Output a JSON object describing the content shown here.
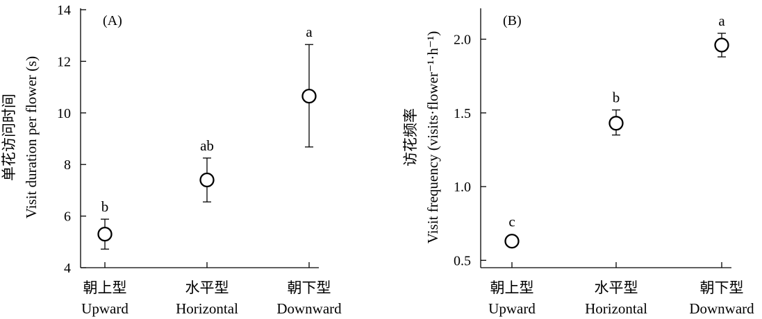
{
  "chart_data": [
    {
      "type": "scatter",
      "panel_label": "(A)",
      "ylabel_cn": "单花访问时间",
      "ylabel_en": "Visit duration per flower (s)",
      "ylim": [
        4,
        14
      ],
      "yticks": [
        4,
        6,
        8,
        10,
        12,
        14
      ],
      "categories": [
        {
          "cn": "朝上型",
          "en": "Upward"
        },
        {
          "cn": "水平型",
          "en": "Horizontal"
        },
        {
          "cn": "朝下型",
          "en": "Downward"
        }
      ],
      "values": [
        5.3,
        7.4,
        10.65
      ],
      "error_low": [
        4.72,
        6.55,
        8.68
      ],
      "error_high": [
        5.88,
        8.25,
        12.65
      ],
      "letters": [
        "b",
        "ab",
        "a"
      ]
    },
    {
      "type": "scatter",
      "panel_label": "(B)",
      "ylabel_cn": "访花频率",
      "ylabel_en": "Visit frequency (visits·flower⁻¹·h⁻¹)",
      "ylim": [
        0.45,
        2.2
      ],
      "yticks": [
        "0.5",
        "1.0",
        "1.5",
        "2.0"
      ],
      "categories": [
        {
          "cn": "朝上型",
          "en": "Upward"
        },
        {
          "cn": "水平型",
          "en": "Horizontal"
        },
        {
          "cn": "朝下型",
          "en": "Downward"
        }
      ],
      "values": [
        0.63,
        1.43,
        1.96
      ],
      "error_low": [
        null,
        1.35,
        1.88
      ],
      "error_high": [
        null,
        1.52,
        2.04
      ],
      "letters": [
        "c",
        "b",
        "a"
      ]
    }
  ]
}
